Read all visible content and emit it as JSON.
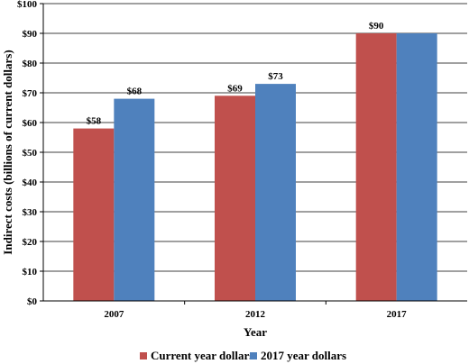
{
  "chart_data": {
    "type": "bar",
    "title": "",
    "xlabel": "Year",
    "ylabel": "Indirect costs (billions of current dollars)",
    "categories": [
      "2007",
      "2012",
      "2017"
    ],
    "series": [
      {
        "name": "Current year dollars",
        "values": [
          58,
          69,
          90
        ],
        "labels": [
          "$58",
          "$69",
          "$90"
        ],
        "color": "#C0504D"
      },
      {
        "name": "2017 year dollars",
        "values": [
          68,
          73,
          90
        ],
        "labels": [
          "$68",
          "$73",
          ""
        ],
        "color": "#4F81BD"
      }
    ],
    "ylim": [
      0,
      100
    ],
    "yticks": [
      0,
      10,
      20,
      30,
      40,
      50,
      60,
      70,
      80,
      90,
      100
    ],
    "ytick_labels": [
      "$0",
      "$10",
      "$20",
      "$30",
      "$40",
      "$50",
      "$60",
      "$70",
      "$80",
      "$90",
      "$100"
    ],
    "grid": true,
    "legend_position": "bottom"
  }
}
